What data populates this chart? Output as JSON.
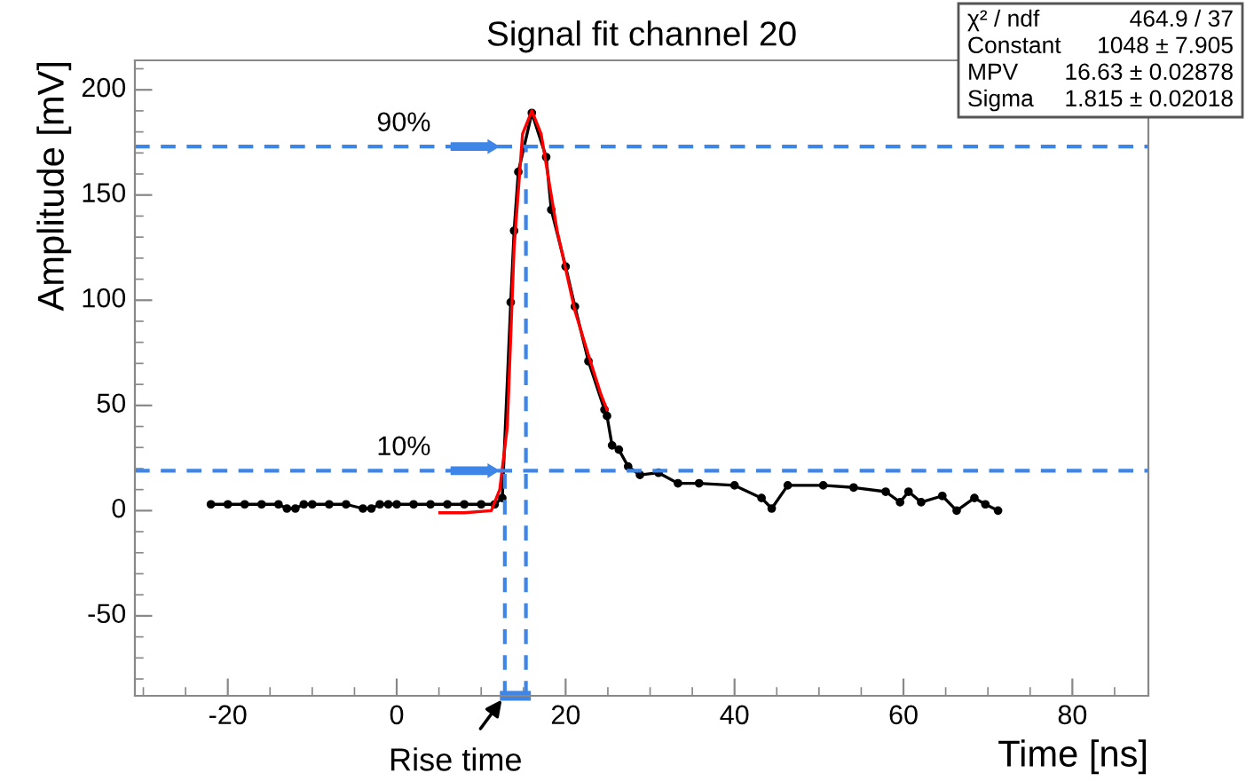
{
  "chart_data": {
    "type": "line",
    "title": "Signal fit channel 20",
    "xlabel": "Time [ns]",
    "ylabel": "Amplitude [mV]",
    "xlim": [
      -31,
      89
    ],
    "ylim": [
      -88,
      214
    ],
    "xticks": [
      -20,
      0,
      20,
      40,
      60,
      80
    ],
    "yticks": [
      -50,
      0,
      50,
      100,
      150,
      200
    ],
    "grid": false,
    "series": [
      {
        "color": "#000000",
        "marker": "circle",
        "x": [
          -22,
          -20,
          -18,
          -16,
          -14,
          -13,
          -12,
          -11,
          -10,
          -8,
          -6,
          -4,
          -3,
          -2,
          -1,
          0,
          2,
          4,
          6,
          8,
          10,
          11.6,
          12.5,
          13.5,
          13.9,
          14.4,
          16.0,
          17.7,
          18.3,
          20.0,
          21.1,
          22.7,
          24.6,
          24.9,
          25.5,
          26.3,
          27.4,
          28.8,
          31.0,
          33.3,
          35.8,
          40.0,
          43.2,
          44.4,
          46.3,
          50.5,
          54.1,
          57.9,
          59.6,
          60.6,
          62.1,
          64.6,
          66.3,
          68.4,
          69.7,
          71.2
        ],
        "values": [
          3,
          3,
          3,
          3,
          3,
          1,
          1,
          3,
          3,
          3,
          3,
          1,
          1,
          3,
          3,
          3,
          3,
          3,
          3,
          3,
          3,
          3,
          6,
          99,
          133,
          161,
          189,
          168,
          143,
          116,
          97,
          71,
          48,
          45,
          31,
          29,
          21,
          17,
          18,
          13,
          13,
          12,
          6,
          1,
          12,
          12,
          11,
          9,
          4,
          9,
          4,
          7,
          0,
          6,
          3,
          0
        ]
      },
      {
        "color": "#ff0000",
        "marker": "none",
        "x": [
          5.1,
          8,
          11.2,
          12.2,
          13.1,
          13.9,
          14.9,
          16.0,
          17.1,
          19.0,
          21.1,
          22.7,
          24.2,
          24.9
        ],
        "values": [
          -1,
          -1,
          0,
          10,
          40,
          125,
          179,
          190,
          179,
          133,
          95,
          74,
          55,
          48
        ]
      }
    ],
    "ref_lines": [
      {
        "axis": "y",
        "value": 173,
        "color": "#3d85e6",
        "line_style": "dashed"
      },
      {
        "axis": "y",
        "value": 19,
        "color": "#3d85e6",
        "line_style": "dashed"
      },
      {
        "axis": "x",
        "value": 15.3,
        "color": "#3d85e6",
        "line_style": "dashed"
      },
      {
        "axis": "x",
        "value": 12.8,
        "color": "#3d85e6",
        "line_style": "dashed"
      }
    ],
    "annotations": [
      "90%",
      "10%",
      "Rise time",
      "χ² / ndf",
      "464.9 / 37",
      "Constant",
      "1048 ± 7.905",
      "MPV",
      "16.63 ± 0.02878",
      "Sigma",
      "1.815 ± 0.02018"
    ]
  }
}
